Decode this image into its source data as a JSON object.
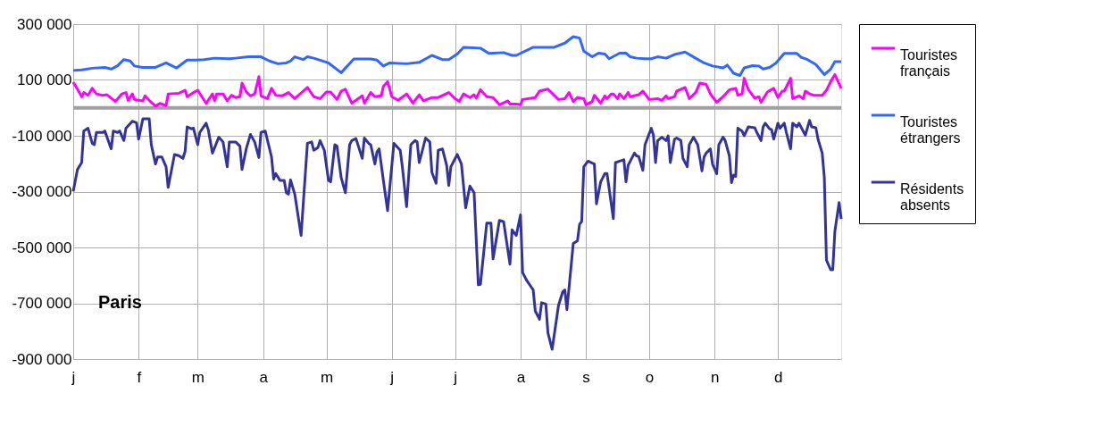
{
  "chart_data": {
    "type": "line",
    "annotations": [
      "Paris"
    ],
    "categories": [
      "j",
      null,
      null,
      null,
      null,
      null,
      null,
      null,
      null,
      null,
      null,
      null,
      null,
      null,
      null,
      null,
      null,
      null,
      null,
      null,
      null,
      null,
      null,
      null,
      null,
      null,
      null,
      null,
      null,
      null,
      null,
      "f",
      null,
      null,
      null,
      null,
      null,
      null,
      null,
      null,
      null,
      null,
      null,
      null,
      null,
      null,
      null,
      null,
      null,
      null,
      null,
      null,
      null,
      null,
      null,
      null,
      null,
      null,
      null,
      "m",
      null,
      null,
      null,
      null,
      null,
      null,
      null,
      null,
      null,
      null,
      null,
      null,
      null,
      null,
      null,
      null,
      null,
      null,
      null,
      null,
      null,
      null,
      null,
      null,
      null,
      null,
      null,
      null,
      null,
      null,
      "a",
      null,
      null,
      null,
      null,
      null,
      null,
      null,
      null,
      null,
      null,
      null,
      null,
      null,
      null,
      null,
      null,
      null,
      null,
      null,
      null,
      null,
      null,
      null,
      null,
      null,
      null,
      null,
      null,
      null,
      "m",
      null,
      null,
      null,
      null,
      null,
      null,
      null,
      null,
      null,
      null,
      null,
      null,
      null,
      null,
      null,
      null,
      null,
      null,
      null,
      null,
      null,
      null,
      null,
      null,
      null,
      null,
      null,
      null,
      null,
      null,
      "j",
      null,
      null,
      null,
      null,
      null,
      null,
      null,
      null,
      null,
      null,
      null,
      null,
      null,
      null,
      null,
      null,
      null,
      null,
      null,
      null,
      null,
      null,
      null,
      null,
      null,
      null,
      null,
      null,
      null,
      "j",
      null,
      null,
      null,
      null,
      null,
      null,
      null,
      null,
      null,
      null,
      null,
      null,
      null,
      null,
      null,
      null,
      null,
      null,
      null,
      null,
      null,
      null,
      null,
      null,
      null,
      null,
      null,
      null,
      null,
      null,
      "a",
      null,
      null,
      null,
      null,
      null,
      null,
      null,
      null,
      null,
      null,
      null,
      null,
      null,
      null,
      null,
      null,
      null,
      null,
      null,
      null,
      null,
      null,
      null,
      null,
      null,
      null,
      null,
      null,
      null,
      null,
      "s",
      null,
      null,
      null,
      null,
      null,
      null,
      null,
      null,
      null,
      null,
      null,
      null,
      null,
      null,
      null,
      null,
      null,
      null,
      null,
      null,
      null,
      null,
      null,
      null,
      null,
      null,
      null,
      null,
      null,
      "o",
      null,
      null,
      null,
      null,
      null,
      null,
      null,
      null,
      null,
      null,
      null,
      null,
      null,
      null,
      null,
      null,
      null,
      null,
      null,
      null,
      null,
      null,
      null,
      null,
      null,
      null,
      null,
      null,
      null,
      null,
      "n",
      null,
      null,
      null,
      null,
      null,
      null,
      null,
      null,
      null,
      null,
      null,
      null,
      null,
      null,
      null,
      null,
      null,
      null,
      null,
      null,
      null,
      null,
      null,
      null,
      null,
      null,
      null,
      null,
      null,
      "d",
      null,
      null,
      null,
      null,
      null,
      null,
      null,
      null,
      null,
      null,
      null,
      null,
      null,
      null,
      null,
      null,
      null,
      null,
      null,
      null,
      null,
      null,
      null,
      null,
      null,
      null,
      null,
      null,
      null,
      null
    ],
    "ylim": [
      -900000,
      300000
    ],
    "yticks": [
      {
        "value": 300000,
        "label": "300 000"
      },
      {
        "value": 100000,
        "label": "100 000"
      },
      {
        "value": -100000,
        "label": "-100 000"
      },
      {
        "value": -300000,
        "label": "-300 000"
      },
      {
        "value": -500000,
        "label": "-500 000"
      },
      {
        "value": -700000,
        "label": "-700 000"
      },
      {
        "value": -900000,
        "label": "-900 000"
      }
    ],
    "grid": true,
    "legend": "right",
    "ref_lines": [
      {
        "axis": "y",
        "value": 0,
        "color": "#a0a0a0"
      }
    ],
    "series": [
      {
        "name": "Touristes français",
        "color": "#ff00ff",
        "values": [
          92000,
          null,
          67000,
          null,
          40000,
          55000,
          null,
          45000,
          null,
          70000,
          null,
          50000,
          null,
          null,
          45000,
          null,
          47000,
          null,
          35000,
          null,
          23000,
          null,
          null,
          50000,
          null,
          55000,
          27000,
          null,
          50000,
          30000,
          null,
          null,
          null,
          25000,
          43000,
          null,
          27000,
          null,
          null,
          6000,
          null,
          16000,
          null,
          null,
          8000,
          50000,
          null,
          null,
          null,
          null,
          52000,
          null,
          null,
          63000,
          40000,
          null,
          null,
          55000,
          null,
          63000,
          null,
          null,
          null,
          16000,
          null,
          null,
          50000,
          25000,
          50000,
          null,
          null,
          50000,
          null,
          25000,
          null,
          45000,
          null,
          37000,
          null,
          40000,
          89000,
          null,
          57000,
          null,
          43000,
          null,
          50000,
          null,
          112000,
          43000,
          null,
          null,
          33000,
          null,
          70000,
          null,
          45000,
          null,
          null,
          43000,
          null,
          null,
          55000,
          null,
          null,
          33000,
          null,
          null,
          null,
          60000,
          null,
          73000,
          null,
          null,
          40000,
          null,
          null,
          33000,
          null,
          null,
          57000,
          null,
          57000,
          null,
          null,
          30000,
          null,
          60000,
          null,
          67000,
          null,
          null,
          17000,
          null,
          27000,
          null,
          null,
          43000,
          17000,
          null,
          null,
          55000,
          null,
          40000,
          null,
          null,
          43000,
          77000,
          null,
          94000,
          null,
          40000,
          null,
          null,
          27000,
          null,
          null,
          null,
          50000,
          null,
          null,
          17000,
          null,
          null,
          47000,
          null,
          25000,
          null,
          null,
          null,
          37000,
          null,
          null,
          37000,
          null,
          null,
          null,
          null,
          55000,
          null,
          null,
          33000,
          null,
          23000,
          null,
          50000,
          null,
          null,
          37000,
          null,
          47000,
          35000,
          null,
          65000,
          null,
          null,
          40000,
          null,
          null,
          37000,
          null,
          null,
          11000,
          null,
          null,
          null,
          25000,
          14000,
          null,
          null,
          14000,
          null,
          11000,
          30000,
          null,
          null,
          null,
          null,
          null,
          37000,
          null,
          60000,
          null,
          null,
          null,
          67000,
          null,
          null,
          null,
          null,
          30000,
          null,
          null,
          33000,
          null,
          55000,
          null,
          23000,
          null,
          37000,
          null,
          null,
          33000,
          11000,
          null,
          null,
          23000,
          45000,
          null,
          null,
          17000,
          null,
          43000,
          33000,
          null,
          50000,
          50000,
          null,
          33000,
          50000,
          null,
          33000,
          null,
          55000,
          40000,
          null,
          null,
          null,
          47000,
          null,
          60000,
          null,
          null,
          30000,
          null,
          null,
          null,
          33000,
          null,
          27000,
          null,
          43000,
          33000,
          null,
          null,
          40000,
          60000,
          null,
          null,
          null,
          73000,
          null,
          33000,
          null,
          null,
          55000,
          null,
          89000,
          null,
          null,
          84000,
          null,
          50000,
          null,
          null,
          20000,
          null,
          null,
          40000,
          null,
          null,
          65000,
          null,
          null,
          70000,
          45000,
          null,
          50000,
          106000,
          null,
          65000,
          null,
          null,
          35000,
          null,
          40000,
          20000,
          null,
          null,
          57000,
          null,
          null,
          70000,
          null,
          37000,
          null,
          60000,
          60000,
          null,
          null,
          106000,
          33000,
          null,
          null,
          43000,
          null,
          33000,
          60000,
          null,
          50000,
          null,
          45000,
          null,
          null,
          null,
          45000,
          null,
          63000,
          null,
          94000,
          null,
          119000,
          null,
          null,
          70000
        ]
      },
      {
        "name": "Touristes étrangers",
        "color": "#3366ff",
        "values": [
          134000,
          null,
          null,
          null,
          136000,
          null,
          null,
          null,
          null,
          142000,
          null,
          null,
          null,
          null,
          null,
          145000,
          null,
          null,
          139000,
          null,
          null,
          151000,
          null,
          null,
          173000,
          null,
          null,
          168000,
          null,
          150000,
          null,
          null,
          null,
          145000,
          null,
          null,
          null,
          null,
          null,
          145000,
          null,
          null,
          null,
          null,
          161000,
          null,
          null,
          null,
          null,
          143000,
          null,
          null,
          null,
          null,
          171000,
          null,
          null,
          null,
          171000,
          null,
          null,
          null,
          173000,
          null,
          null,
          null,
          null,
          178000,
          null,
          null,
          null,
          null,
          null,
          null,
          176000,
          null,
          null,
          178000,
          null,
          null,
          null,
          null,
          null,
          183000,
          null,
          null,
          null,
          null,
          null,
          183000,
          null,
          null,
          null,
          168000,
          null,
          null,
          null,
          158000,
          null,
          null,
          null,
          161000,
          null,
          168000,
          null,
          183000,
          null,
          null,
          null,
          173000,
          null,
          183000,
          null,
          null,
          178000,
          null,
          null,
          null,
          null,
          null,
          null,
          161000,
          null,
          null,
          null,
          null,
          null,
          126000,
          null,
          null,
          null,
          null,
          null,
          175000,
          null,
          null,
          null,
          null,
          null,
          null,
          null,
          175000,
          null,
          null,
          171000,
          null,
          null,
          150000,
          null,
          null,
          161000,
          null,
          null,
          null,
          null,
          null,
          null,
          null,
          158000,
          null,
          null,
          null,
          null,
          null,
          163000,
          null,
          null,
          null,
          null,
          null,
          188000,
          null,
          null,
          null,
          null,
          173000,
          null,
          null,
          173000,
          null,
          null,
          null,
          193000,
          null,
          null,
          217000,
          null,
          null,
          null,
          null,
          null,
          null,
          null,
          214000,
          null,
          null,
          null,
          195000,
          null,
          null,
          null,
          null,
          null,
          null,
          198000,
          null,
          null,
          null,
          188000,
          null,
          188000,
          null,
          null,
          null,
          null,
          null,
          null,
          null,
          217000,
          null,
          null,
          null,
          null,
          null,
          null,
          null,
          null,
          null,
          217000,
          null,
          null,
          null,
          null,
          232000,
          null,
          null,
          null,
          255000,
          null,
          null,
          250000,
          null,
          203000,
          null,
          null,
          null,
          183000,
          null,
          null,
          196000,
          null,
          null,
          193000,
          null,
          176000,
          null,
          null,
          null,
          null,
          196000,
          null,
          null,
          196000,
          null,
          183000,
          null,
          null,
          178000,
          null,
          null,
          null,
          176000,
          null,
          null,
          176000,
          null,
          null,
          183000,
          null,
          null,
          null,
          178000,
          null,
          null,
          null,
          191000,
          null,
          null,
          null,
          null,
          200000,
          null,
          null,
          null,
          null,
          178000,
          null,
          null,
          null,
          161000,
          null,
          null,
          null,
          150000,
          null,
          null,
          null,
          null,
          143000,
          null,
          153000,
          null,
          null,
          124000,
          null,
          null,
          116000,
          null,
          143000,
          null,
          null,
          null,
          151000,
          null,
          null,
          150000,
          null,
          139000,
          null,
          null,
          145000,
          null,
          null,
          160000,
          null,
          null,
          null,
          195000,
          null,
          null,
          null,
          null,
          null,
          195000,
          null,
          181000,
          null,
          null,
          173000,
          null,
          null,
          null,
          155000,
          null,
          null,
          null,
          119000,
          null,
          null,
          139000,
          null,
          166000,
          null,
          null,
          166000
        ]
      },
      {
        "name": "Résidents absents",
        "color": "#333399",
        "values": [
          -299000,
          null,
          -221000,
          null,
          -196000,
          -83000,
          null,
          -73000,
          null,
          -127000,
          -132000,
          -88000,
          null,
          null,
          -88000,
          -83000,
          null,
          null,
          -147000,
          -83000,
          null,
          -88000,
          -83000,
          null,
          -117000,
          -73000,
          null,
          null,
          -48000,
          null,
          -53000,
          -112000,
          null,
          -39000,
          null,
          null,
          -39000,
          -132000,
          null,
          -201000,
          -176000,
          null,
          -176000,
          null,
          -211000,
          -285000,
          null,
          null,
          -167000,
          null,
          -171000,
          null,
          -181000,
          -157000,
          -68000,
          null,
          -75000,
          -73000,
          null,
          -132000,
          -88000,
          null,
          null,
          -55000,
          -78000,
          null,
          -162000,
          null,
          null,
          -105000,
          null,
          -122000,
          null,
          -211000,
          -122000,
          null,
          null,
          -122000,
          null,
          -137000,
          -221000,
          null,
          -147000,
          null,
          -95000,
          null,
          -122000,
          null,
          -178000,
          -88000,
          null,
          -83000,
          null,
          null,
          -176000,
          -255000,
          -235000,
          null,
          -260000,
          null,
          -260000,
          -304000,
          -309000,
          -258000,
          null,
          -309000,
          null,
          null,
          -457000,
          null,
          null,
          -127000,
          null,
          -122000,
          -152000,
          null,
          -142000,
          -117000,
          null,
          -152000,
          null,
          -260000,
          -265000,
          null,
          -132000,
          -137000,
          null,
          -250000,
          null,
          -304000,
          null,
          -132000,
          -117000,
          null,
          -110000,
          null,
          null,
          -181000,
          -108000,
          null,
          -127000,
          -132000,
          null,
          -201000,
          -157000,
          -147000,
          null,
          -260000,
          null,
          -368000,
          null,
          null,
          -127000,
          null,
          null,
          -152000,
          -211000,
          null,
          -354000,
          null,
          -132000,
          null,
          -117000,
          -122000,
          -196000,
          null,
          null,
          -108000,
          null,
          -122000,
          -231000,
          null,
          -270000,
          -152000,
          null,
          -147000,
          null,
          -206000,
          -278000,
          -211000,
          null,
          null,
          -167000,
          null,
          -201000,
          null,
          -358000,
          null,
          -280000,
          null,
          -304000,
          null,
          -634000,
          -632000,
          null,
          null,
          -413000,
          null,
          -413000,
          -541000,
          null,
          null,
          -403000,
          null,
          -408000,
          null,
          null,
          -560000,
          -437000,
          null,
          -457000,
          null,
          -383000,
          -590000,
          null,
          -619000,
          null,
          null,
          -652000,
          -728000,
          null,
          -757000,
          -698000,
          null,
          -703000,
          -806000,
          null,
          -865000,
          null,
          null,
          -708000,
          null,
          -659000,
          -652000,
          -723000,
          null,
          null,
          -486000,
          null,
          -476000,
          -417000,
          -407000,
          -211000,
          null,
          -191000,
          null,
          null,
          -201000,
          -344000,
          null,
          -265000,
          null,
          -235000,
          -235000,
          null,
          null,
          -397000,
          -196000,
          null,
          -191000,
          null,
          -186000,
          -265000,
          -206000,
          null,
          null,
          -162000,
          -172000,
          -174000,
          null,
          -224000,
          -132000,
          null,
          null,
          -73000,
          -98000,
          -196000,
          -117000,
          null,
          -105000,
          null,
          -117000,
          -100000,
          -196000,
          null,
          -112000,
          -108000,
          null,
          -117000,
          -181000,
          null,
          -211000,
          -132000,
          null,
          -105000,
          null,
          -132000,
          null,
          -226000,
          -176000,
          -162000,
          null,
          -147000,
          -201000,
          null,
          -236000,
          -132000,
          null,
          -105000,
          -117000,
          null,
          -172000,
          -268000,
          -241000,
          -245000,
          -73000,
          null,
          -83000,
          -100000,
          null,
          -68000,
          null,
          null,
          -71000,
          -88000,
          null,
          -117000,
          -68000,
          -55000,
          null,
          -75000,
          -78000,
          -112000,
          null,
          -55000,
          -73000,
          null,
          -55000,
          -88000,
          null,
          -147000,
          -55000,
          null,
          -68000,
          -55000,
          null,
          null,
          -98000,
          null,
          -45000,
          -68000,
          null,
          -71000,
          -112000,
          null,
          -162000,
          -250000,
          -545000,
          null,
          -580000,
          -580000,
          -442000,
          null,
          -339000,
          -398000
        ]
      }
    ]
  }
}
